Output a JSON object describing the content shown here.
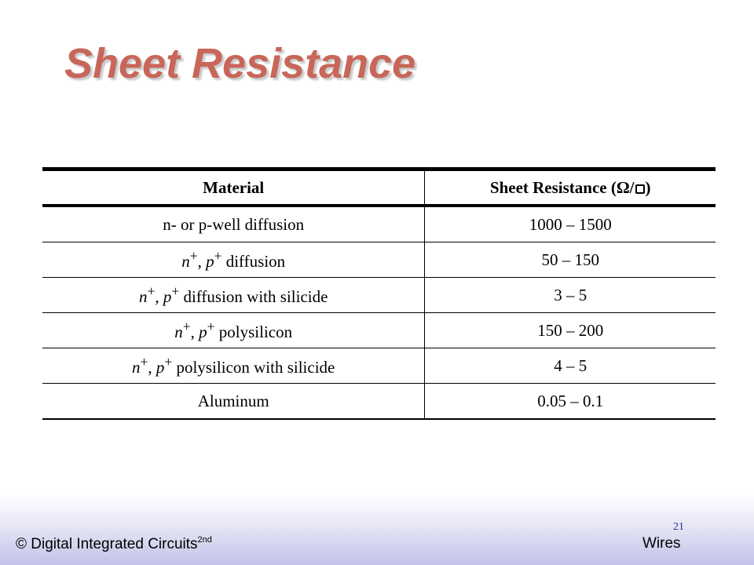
{
  "slide": {
    "title": "Sheet Resistance",
    "page_number": "21"
  },
  "table": {
    "headers": {
      "material": "Material",
      "sheet_resistance": "Sheet Resistance (Ω/",
      "sheet_resistance_tail": ")"
    },
    "rows": [
      {
        "material_html": "n- or p-well diffusion",
        "value": "1000 – 1500"
      },
      {
        "material_html": "<i>n</i><sup>+</sup>, <i>p</i><sup>+</sup> diffusion",
        "value": "50 – 150"
      },
      {
        "material_html": "<i>n</i><sup>+</sup>, <i>p</i><sup>+</sup> diffusion with silicide",
        "value": "3 – 5"
      },
      {
        "material_html": "<i>n</i><sup>+</sup>, <i>p</i><sup>+</sup> polysilicon",
        "value": "150 – 200"
      },
      {
        "material_html": "<i>n</i><sup>+</sup>, <i>p</i><sup>+</sup> polysilicon with silicide",
        "value": "4 – 5"
      },
      {
        "material_html": "Aluminum",
        "value": "0.05 – 0.1"
      }
    ]
  },
  "footer": {
    "copyright": "© Digital Integrated Circuits",
    "edition": "2nd",
    "section": "Wires"
  }
}
